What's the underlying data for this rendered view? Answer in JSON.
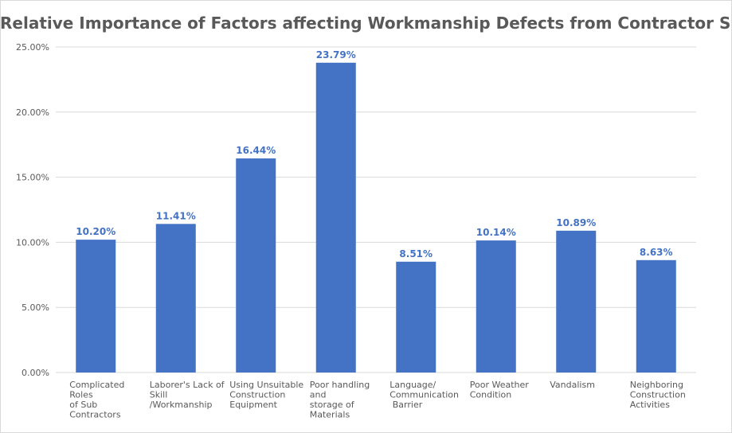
{
  "chart_data": {
    "type": "bar",
    "title": "Relative Importance of Factors affecting Workmanship Defects from Contractor Side",
    "categories": [
      [
        "Complicated",
        "Roles",
        "of Sub",
        "Contractors"
      ],
      [
        "Laborer's Lack of",
        "Skill",
        "/Workmanship"
      ],
      [
        "Using Unsuitable",
        "Construction",
        "Equipment"
      ],
      [
        "Poor handling",
        "and",
        "storage of",
        "Materials"
      ],
      [
        "Language/",
        "Communication",
        " Barrier"
      ],
      [
        "Poor Weather",
        "Condition"
      ],
      [
        "Vandalism"
      ],
      [
        "Neighboring",
        "Construction",
        "Activities"
      ]
    ],
    "values": [
      10.2,
      11.41,
      16.44,
      23.79,
      8.51,
      10.14,
      10.89,
      8.63
    ],
    "data_labels": [
      "10.20%",
      "11.41%",
      "16.44%",
      "23.79%",
      "8.51%",
      "10.14%",
      "10.89%",
      "8.63%"
    ],
    "ylim": [
      0,
      25
    ],
    "yticks": [
      0,
      5,
      10,
      15,
      20,
      25
    ],
    "ytick_labels": [
      "0.00%",
      "5.00%",
      "10.00%",
      "15.00%",
      "20.00%",
      "25.00%"
    ],
    "xlabel": "",
    "ylabel": "",
    "grid": true,
    "legend": "none",
    "colors": {
      "bar": "#4472c4",
      "data_label": "#4472c4",
      "gridline": "#d9d9d9",
      "axis_text": "#595959",
      "title": "#595959"
    }
  }
}
